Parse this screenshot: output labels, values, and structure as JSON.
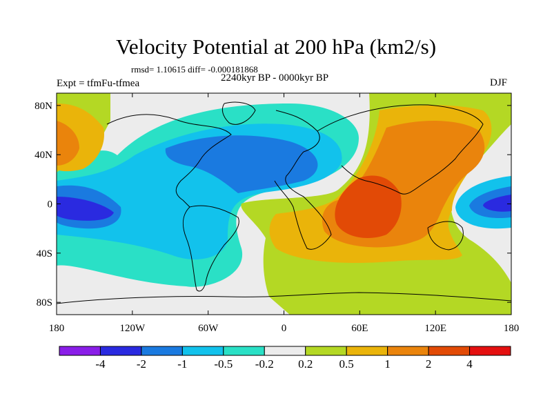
{
  "header": {
    "title": "Velocity Potential at 200 hPa (km2/s)",
    "stats": "rmsd= 1.10615 diff= -0.000181868",
    "experiment": "Expt = tfmFu-tfmea",
    "period": "2240kyr BP - 0000kyr BP",
    "season": "DJF"
  },
  "axes": {
    "y_ticks": [
      "80N",
      "40N",
      "0",
      "40S",
      "80S"
    ],
    "x_ticks": [
      "180",
      "120W",
      "60W",
      "0",
      "60E",
      "120E",
      "180"
    ]
  },
  "colorbar": {
    "levels": [
      "-4",
      "-2",
      "-1",
      "-0.5",
      "-0.2",
      "0.2",
      "0.5",
      "1",
      "2",
      "4"
    ],
    "colors": [
      "#8a1ee8",
      "#2a2ae0",
      "#1a7ae0",
      "#12c2ec",
      "#2ae0c6",
      "#ececec",
      "#b4d824",
      "#eab40a",
      "#ea840c",
      "#e24a06",
      "#e41010"
    ]
  },
  "chart_data": {
    "type": "heatmap",
    "map_region": "global",
    "xlim": [
      -180,
      180
    ],
    "ylim": [
      -90,
      90
    ],
    "contour_fill": "velocity potential difference"
  }
}
